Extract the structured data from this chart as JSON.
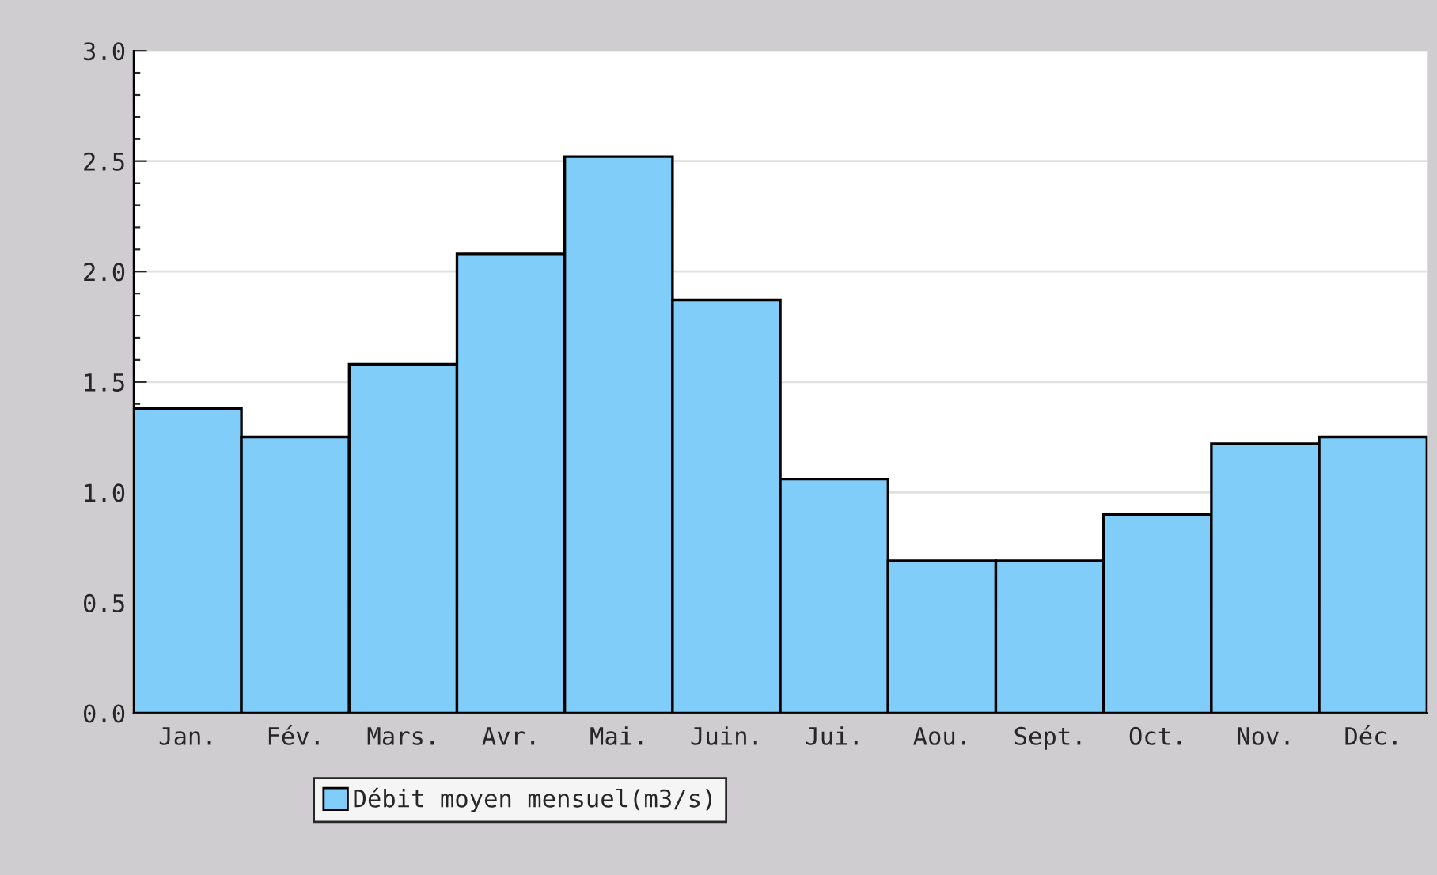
{
  "chart_data": {
    "type": "bar",
    "categories": [
      "Jan.",
      "Fév.",
      "Mars.",
      "Avr.",
      "Mai.",
      "Juin.",
      "Jui.",
      "Aou.",
      "Sept.",
      "Oct.",
      "Nov.",
      "Déc."
    ],
    "series": [
      {
        "name": "Débit moyen mensuel(m3/s)",
        "color": "#80cdf9",
        "values": [
          1.38,
          1.25,
          1.58,
          2.08,
          2.52,
          1.87,
          1.06,
          0.69,
          0.69,
          0.9,
          1.22,
          1.25
        ]
      }
    ],
    "ylim": [
      0,
      3.0
    ],
    "yticks": [
      {
        "value": 0,
        "label": "0.0"
      },
      {
        "value": 0.1,
        "label": null
      },
      {
        "value": 0.2,
        "label": null
      },
      {
        "value": 0.3,
        "label": null
      },
      {
        "value": 0.4,
        "label": null
      },
      {
        "value": 0.5,
        "label": "0.5"
      },
      {
        "value": 0.6,
        "label": null
      },
      {
        "value": 0.7,
        "label": null
      },
      {
        "value": 0.8,
        "label": null
      },
      {
        "value": 0.9,
        "label": null
      },
      {
        "value": 1,
        "label": "1.0"
      },
      {
        "value": 1.1,
        "label": null
      },
      {
        "value": 1.2,
        "label": null
      },
      {
        "value": 1.3,
        "label": null
      },
      {
        "value": 1.4,
        "label": null
      },
      {
        "value": 1.5,
        "label": "1.5"
      },
      {
        "value": 1.6,
        "label": null
      },
      {
        "value": 1.7,
        "label": null
      },
      {
        "value": 1.8,
        "label": null
      },
      {
        "value": 1.9,
        "label": null
      },
      {
        "value": 2,
        "label": "2.0"
      },
      {
        "value": 2.1,
        "label": null
      },
      {
        "value": 2.2,
        "label": null
      },
      {
        "value": 2.3,
        "label": null
      },
      {
        "value": 2.4,
        "label": null
      },
      {
        "value": 2.5,
        "label": "2.5"
      },
      {
        "value": 2.6,
        "label": null
      },
      {
        "value": 2.7,
        "label": null
      },
      {
        "value": 2.8,
        "label": null
      },
      {
        "value": 2.9,
        "label": null
      },
      {
        "value": 3,
        "label": "3.0"
      }
    ],
    "grid": "y",
    "legend": "bottom left"
  }
}
